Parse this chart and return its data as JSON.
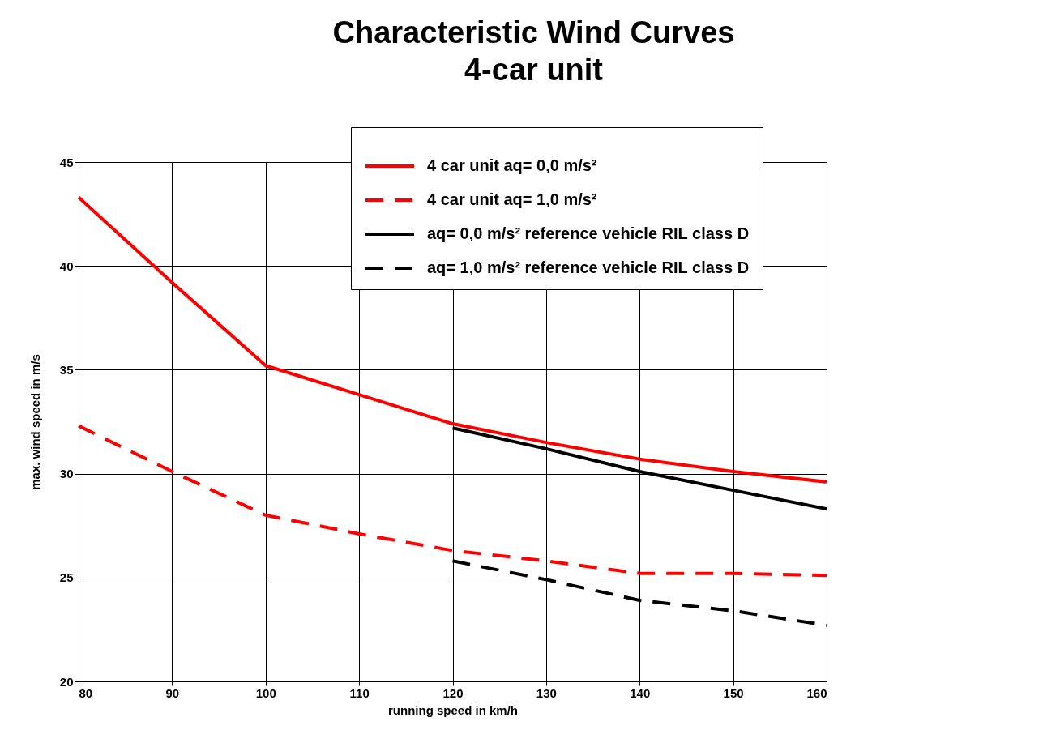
{
  "chart_data": {
    "type": "line",
    "title": "Characteristic Wind Curves",
    "subtitle": "4-car unit",
    "xlabel": "running speed in km/h",
    "ylabel": "max. wind speed in m/s",
    "x": [
      80,
      90,
      100,
      110,
      120,
      130,
      140,
      150,
      160
    ],
    "series": [
      {
        "name": "4 car unit aq= 0,0 m/s²",
        "color": "#ff0000",
        "line_style": "solid",
        "values": [
          43.3,
          39.2,
          35.2,
          33.8,
          32.4,
          31.5,
          30.7,
          30.1,
          29.6
        ]
      },
      {
        "name": "4 car unit aq= 1,0 m/s²",
        "color": "#ff0000",
        "line_style": "dashed",
        "values": [
          32.3,
          30.1,
          28.0,
          27.1,
          26.3,
          25.8,
          25.2,
          25.2,
          25.1
        ]
      },
      {
        "name": "aq= 0,0 m/s² reference vehicle RIL class D",
        "color": "#000000",
        "line_style": "solid",
        "values": [
          null,
          null,
          null,
          null,
          32.2,
          31.2,
          30.1,
          29.2,
          28.3
        ]
      },
      {
        "name": "aq= 1,0 m/s² reference vehicle RIL class D",
        "color": "#000000",
        "line_style": "dashed",
        "values": [
          null,
          null,
          null,
          null,
          25.8,
          24.9,
          23.9,
          23.4,
          22.7
        ]
      }
    ],
    "xlim": [
      80,
      160
    ],
    "xticks": [
      80,
      90,
      100,
      110,
      120,
      130,
      140,
      150,
      160
    ],
    "ylim": [
      20,
      45
    ],
    "yticks": [
      20,
      25,
      30,
      35,
      40,
      45
    ],
    "grid": true,
    "legend": "top right",
    "marker": "none"
  }
}
